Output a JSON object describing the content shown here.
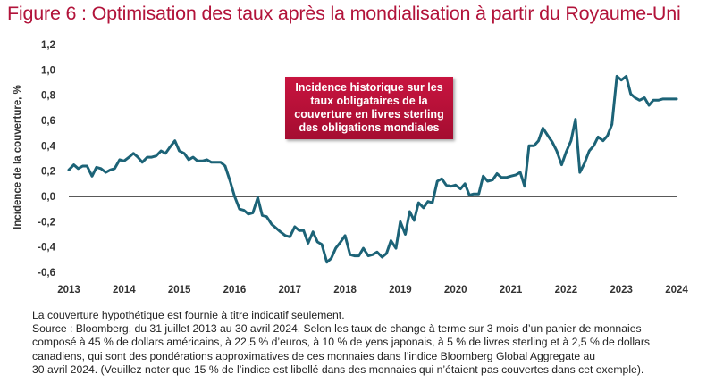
{
  "title": "Figure 6 : Optimisation des taux après la mondialisation à partir du Royaume-Uni",
  "annotation": "Incidence historique sur les taux obligataires de la couverture en livres sterling des obligations mondiales",
  "notes": {
    "line1": "La couverture hypothétique est fournie à titre indicatif seulement.",
    "line2": "Source : Bloomberg, du 31 juillet 2013 au 30 avril 2024. Selon les taux de change à terme sur 3 mois d’un panier de monnaies",
    "line3": "composé à 45 % de dollars américains, à 22,5 % d’euros, à 10 % de yens japonais, à 5 % de livres sterling et à 2,5 % de dollars",
    "line4": "canadiens, qui sont des pondérations approximatives de ces monnaies dans l’indice Bloomberg Global Aggregate au",
    "line5": "30 avril 2024. (Veuillez noter que 15 % de l’indice est libellé dans des monnaies qui n’étaient pas couvertes dans cet exemple)."
  },
  "colors": {
    "title": "#b2133a",
    "line": "#1c6377",
    "annotation_bg": "#b8103a",
    "zero_line": "#222222"
  },
  "chart_data": {
    "type": "line",
    "ylabel": "Incidence de la couverture, %",
    "xlabel": "",
    "ylim": [
      -0.6,
      1.2
    ],
    "xlim": [
      2013.0,
      2024.0
    ],
    "yticks": [
      -0.6,
      -0.4,
      -0.2,
      0.0,
      0.2,
      0.4,
      0.6,
      0.8,
      1.0,
      1.2
    ],
    "ytick_labels": [
      "-0,6",
      "-0,4",
      "-0,2",
      "0,0",
      "0,2",
      "0,4",
      "0,6",
      "0,8",
      "1,0",
      "1,2"
    ],
    "xticks": [
      2013,
      2014,
      2015,
      2016,
      2017,
      2018,
      2019,
      2020,
      2021,
      2022,
      2023,
      2024
    ],
    "xtick_labels": [
      "2013",
      "2014",
      "2015",
      "2016",
      "2017",
      "2018",
      "2019",
      "2020",
      "2021",
      "2022",
      "2023",
      "2024"
    ],
    "grid": false,
    "series": [
      {
        "x": [
          2013.0,
          2013.09,
          2013.17,
          2013.25,
          2013.33,
          2013.42,
          2013.5,
          2013.58,
          2013.67,
          2013.75,
          2013.83,
          2013.92,
          2014.0,
          2014.09,
          2014.17,
          2014.25,
          2014.33,
          2014.42,
          2014.5,
          2014.58,
          2014.67,
          2014.75,
          2014.83,
          2014.92,
          2015.0,
          2015.09,
          2015.17,
          2015.25,
          2015.33,
          2015.42,
          2015.5,
          2015.58,
          2015.67,
          2015.75,
          2015.83,
          2015.92,
          2016.0,
          2016.09,
          2016.17,
          2016.25,
          2016.33,
          2016.42,
          2016.5,
          2016.58,
          2016.67,
          2016.75,
          2016.83,
          2016.92,
          2017.0,
          2017.09,
          2017.17,
          2017.25,
          2017.33,
          2017.42,
          2017.5,
          2017.58,
          2017.67,
          2017.75,
          2017.83,
          2017.92,
          2018.0,
          2018.09,
          2018.17,
          2018.25,
          2018.33,
          2018.42,
          2018.5,
          2018.58,
          2018.67,
          2018.75,
          2018.83,
          2018.92,
          2019.0,
          2019.09,
          2019.17,
          2019.25,
          2019.33,
          2019.42,
          2019.5,
          2019.58,
          2019.67,
          2019.75,
          2019.83,
          2019.92,
          2020.0,
          2020.09,
          2020.17,
          2020.25,
          2020.33,
          2020.42,
          2020.5,
          2020.58,
          2020.67,
          2020.75,
          2020.83,
          2020.92,
          2021.0,
          2021.09,
          2021.17,
          2021.25,
          2021.33,
          2021.42,
          2021.5,
          2021.58,
          2021.67,
          2021.75,
          2021.83,
          2021.92,
          2022.0,
          2022.09,
          2022.17,
          2022.25,
          2022.33,
          2022.42,
          2022.5,
          2022.58,
          2022.67,
          2022.75,
          2022.83,
          2022.92,
          2023.0,
          2023.09,
          2023.17,
          2023.25,
          2023.33,
          2023.42,
          2023.5,
          2023.58,
          2023.67,
          2023.75,
          2023.83,
          2023.92,
          2024.0
        ],
        "y": [
          0.21,
          0.25,
          0.22,
          0.24,
          0.24,
          0.16,
          0.23,
          0.22,
          0.19,
          0.21,
          0.22,
          0.29,
          0.28,
          0.31,
          0.34,
          0.31,
          0.27,
          0.31,
          0.31,
          0.32,
          0.36,
          0.34,
          0.39,
          0.44,
          0.36,
          0.34,
          0.29,
          0.31,
          0.28,
          0.28,
          0.29,
          0.27,
          0.27,
          0.27,
          0.24,
          0.12,
          0.0,
          -0.1,
          -0.11,
          -0.14,
          -0.13,
          -0.01,
          -0.15,
          -0.16,
          -0.22,
          -0.25,
          -0.28,
          -0.31,
          -0.32,
          -0.24,
          -0.27,
          -0.27,
          -0.37,
          -0.28,
          -0.36,
          -0.38,
          -0.52,
          -0.49,
          -0.41,
          -0.36,
          -0.31,
          -0.46,
          -0.47,
          -0.47,
          -0.41,
          -0.47,
          -0.46,
          -0.44,
          -0.48,
          -0.45,
          -0.35,
          -0.41,
          -0.2,
          -0.3,
          -0.12,
          -0.19,
          -0.05,
          -0.09,
          -0.04,
          -0.05,
          0.12,
          0.14,
          0.09,
          0.08,
          0.09,
          0.06,
          0.1,
          0.01,
          0.02,
          0.02,
          0.16,
          0.12,
          0.13,
          0.18,
          0.15,
          0.15,
          0.16,
          0.17,
          0.19,
          0.08,
          0.4,
          0.4,
          0.44,
          0.54,
          0.48,
          0.43,
          0.36,
          0.25,
          0.35,
          0.44,
          0.61,
          0.19,
          0.26,
          0.36,
          0.4,
          0.47,
          0.44,
          0.48,
          0.57,
          0.95,
          0.92,
          0.95,
          0.81,
          0.78,
          0.76,
          0.78,
          0.72,
          0.76,
          0.76,
          0.77,
          0.77,
          0.77,
          0.77
        ]
      }
    ]
  }
}
